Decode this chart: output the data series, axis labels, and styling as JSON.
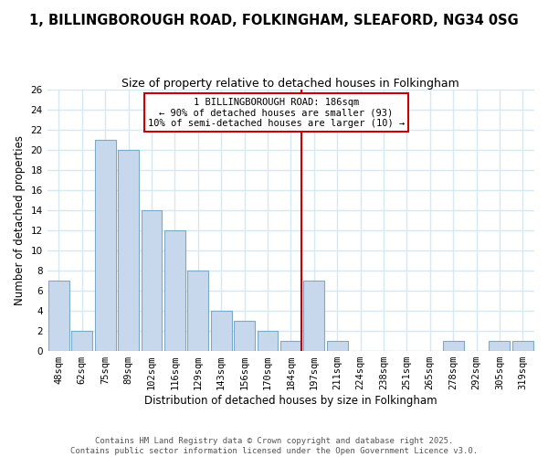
{
  "title": "1, BILLINGBOROUGH ROAD, FOLKINGHAM, SLEAFORD, NG34 0SG",
  "subtitle": "Size of property relative to detached houses in Folkingham",
  "xlabel": "Distribution of detached houses by size in Folkingham",
  "ylabel": "Number of detached properties",
  "categories": [
    "48sqm",
    "62sqm",
    "75sqm",
    "89sqm",
    "102sqm",
    "116sqm",
    "129sqm",
    "143sqm",
    "156sqm",
    "170sqm",
    "184sqm",
    "197sqm",
    "211sqm",
    "224sqm",
    "238sqm",
    "251sqm",
    "265sqm",
    "278sqm",
    "292sqm",
    "305sqm",
    "319sqm"
  ],
  "values": [
    7,
    2,
    21,
    20,
    14,
    12,
    8,
    4,
    3,
    2,
    1,
    7,
    1,
    0,
    0,
    0,
    0,
    1,
    0,
    1,
    1
  ],
  "bar_color": "#c8d8ec",
  "bar_edge_color": "#7aaac8",
  "vline_color": "#cc0000",
  "ylim": [
    0,
    26
  ],
  "yticks": [
    0,
    2,
    4,
    6,
    8,
    10,
    12,
    14,
    16,
    18,
    20,
    22,
    24,
    26
  ],
  "annotation_title": "1 BILLINGBOROUGH ROAD: 186sqm",
  "annotation_line1": "← 90% of detached houses are smaller (93)",
  "annotation_line2": "10% of semi-detached houses are larger (10) →",
  "annotation_box_color": "#ffffff",
  "annotation_box_edge": "#cc0000",
  "footnote1": "Contains HM Land Registry data © Crown copyright and database right 2025.",
  "footnote2": "Contains public sector information licensed under the Open Government Licence v3.0.",
  "background_color": "#ffffff",
  "grid_color": "#d8e8f0",
  "title_fontsize": 10.5,
  "subtitle_fontsize": 9,
  "axis_label_fontsize": 8.5,
  "tick_fontsize": 7.5,
  "annotation_fontsize": 7.5,
  "footnote_fontsize": 6.5
}
